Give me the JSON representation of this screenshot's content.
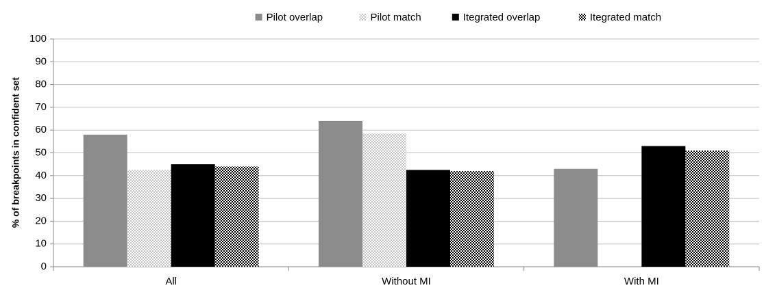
{
  "chart_data": {
    "type": "bar",
    "y_label": "% of breakpoints in confident set",
    "categories": [
      "All",
      "Without MI",
      "With MI"
    ],
    "series": [
      {
        "name": "Pilot overlap",
        "color": "#8c8c8c",
        "values": [
          58,
          64,
          43
        ]
      },
      {
        "name": "Pilot match",
        "color": "#c4c4c4",
        "pattern": "checker",
        "values": [
          42.5,
          58.5,
          null
        ]
      },
      {
        "name": "Itegrated overlap",
        "color": "#000000",
        "values": [
          45,
          42.5,
          53
        ]
      },
      {
        "name": "Itegrated match",
        "color": "#000000",
        "pattern": "checker",
        "values": [
          44,
          42,
          51
        ]
      }
    ],
    "ylim": [
      0,
      100
    ],
    "yticks": [
      0,
      10,
      20,
      30,
      40,
      50,
      60,
      70,
      80,
      90,
      100
    ],
    "grid": true,
    "legend": "top"
  }
}
